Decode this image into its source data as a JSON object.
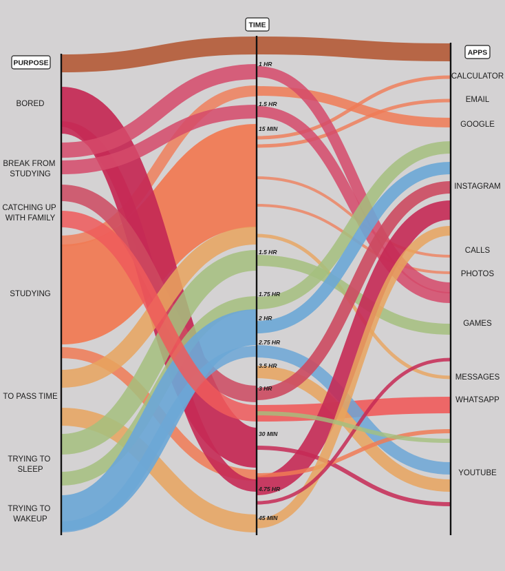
{
  "headers": {
    "purpose": "PURPOSE",
    "time": "TIME",
    "apps": "APPS"
  },
  "colors": {
    "top": "#b5603e",
    "bored": "#c52a55",
    "break": "#d54a6a",
    "catching": "#cc4a60",
    "studying": "#f07b55",
    "pass": "#e8a45e",
    "sleep": "#a4c07e",
    "wake": "#6ca7d6",
    "whatsapp": "#ef5b5b"
  },
  "purposes": [
    {
      "lines": [
        "BORED"
      ]
    },
    {
      "lines": [
        "BREAK FROM",
        "STUDYING"
      ]
    },
    {
      "lines": [
        "CATCHING UP",
        "WITH FAMILY"
      ]
    },
    {
      "lines": [
        "STUDYING"
      ]
    },
    {
      "lines": [
        "TO PASS TIME"
      ]
    },
    {
      "lines": [
        "TRYING TO",
        "SLEEP"
      ]
    },
    {
      "lines": [
        "TRYING TO",
        "WAKEUP"
      ]
    }
  ],
  "times": [
    "1 HR",
    "1.5 HR",
    "15 MIN",
    "1.5 HR",
    "1.75 HR",
    "2 HR",
    "2.75 HR",
    "3.5 HR",
    "3 HR",
    "30 MIN",
    "4.75 HR",
    "45 MIN"
  ],
  "apps": [
    "CALCULATOR",
    "EMAIL",
    "GOOGLE",
    "INSTAGRAM",
    "CALLS",
    "PHOTOS",
    "GAMES",
    "MESSAGES",
    "WHATSAPP",
    "YOUTUBE"
  ]
}
